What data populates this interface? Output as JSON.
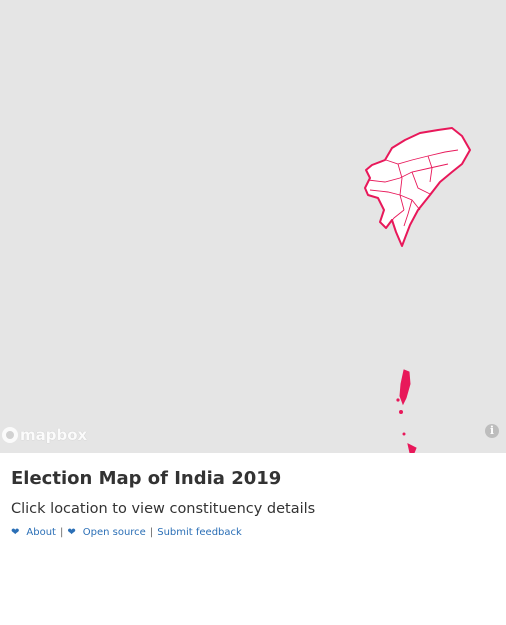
{
  "map": {
    "attribution_logo_text": "mapbox",
    "info_icon": "info-icon",
    "region_color": "#e8185a",
    "background_color": "#e5e5e5"
  },
  "panel": {
    "title": "Election Map of India 2019",
    "subtitle": "Click location to view constituency details",
    "links": {
      "about": "About",
      "open_source": "Open source",
      "feedback": "Submit feedback",
      "separator": "|",
      "heart_icon": "heart-icon"
    }
  }
}
